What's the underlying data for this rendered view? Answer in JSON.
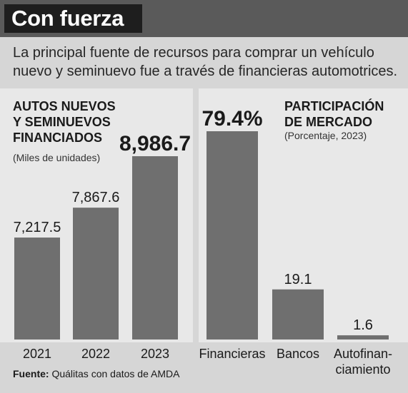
{
  "header": {
    "title": "Con fuerza",
    "subtitle": "La principal fuente de recursos para comprar un vehículo nuevo y seminuevo fue a través de financieras automotrices."
  },
  "colors": {
    "bar": "#6f6f6f",
    "panel": "#e8e8e8",
    "page": "#d6d6d6",
    "title_box": "#1e1e1e",
    "title_bar": "#5a5a5a"
  },
  "chart_data": [
    {
      "type": "bar",
      "title": "AUTOS NUEVOS\nY SEMINUEVOS\nFINANCIADOS",
      "subtitle": "(Miles de unidades)",
      "categories": [
        "2021",
        "2022",
        "2023"
      ],
      "values": [
        7217.5,
        7867.6,
        8986.7
      ],
      "value_labels": [
        "7,217.5",
        "7,867.6",
        "8,986.7"
      ],
      "ylim": [
        5000,
        10100
      ]
    },
    {
      "type": "bar",
      "title": "PARTICIPACIÓN\nDE MERCADO",
      "subtitle": "(Porcentaje, 2023)",
      "categories": [
        "Financieras",
        "Bancos",
        "Autofinan-\nciamiento"
      ],
      "values": [
        79.4,
        19.1,
        1.6
      ],
      "value_labels": [
        "79.4%",
        "19.1",
        "1.6"
      ],
      "ylim": [
        0,
        100
      ]
    }
  ],
  "footer": {
    "source_label": "Fuente:",
    "source_text": " Quálitas con datos de AMDA"
  }
}
